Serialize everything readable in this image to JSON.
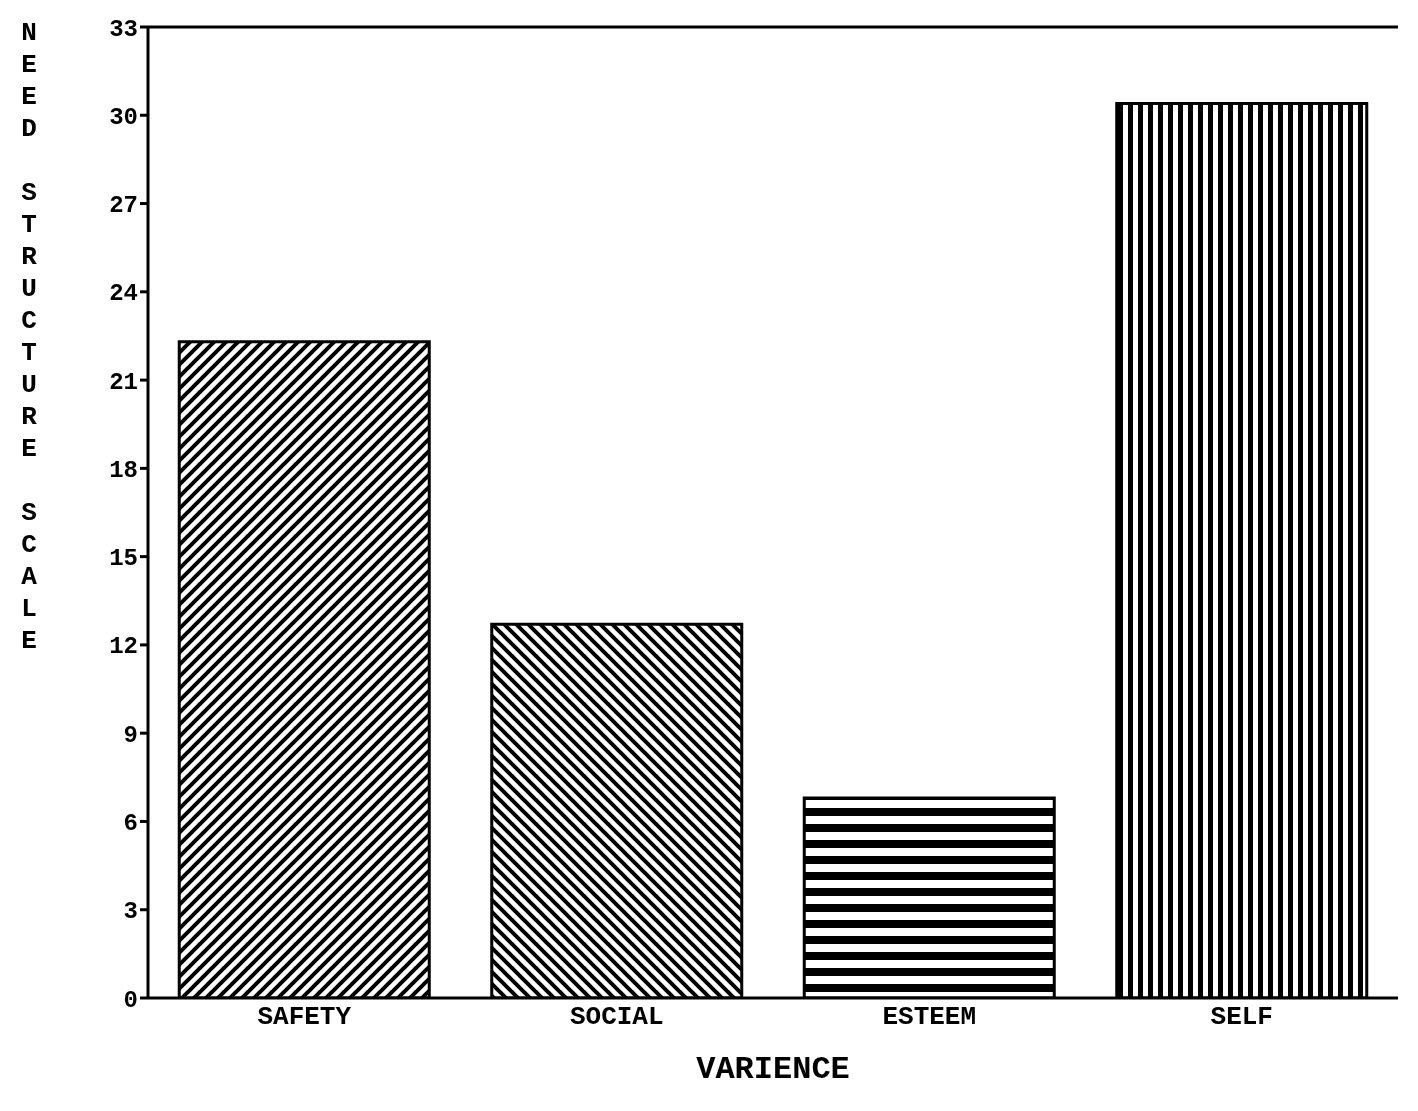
{
  "chart_data": {
    "type": "bar",
    "xlabel": "VARIENCE",
    "ylabel": "NEED STRUCTURE SCALE",
    "categories": [
      "SAFETY",
      "SOCIAL",
      "ESTEEM",
      "SELF"
    ],
    "values": [
      22.3,
      12.7,
      6.8,
      30.4
    ],
    "color": "#000000",
    "ylim": [
      0,
      33
    ],
    "yticks": [
      0,
      3,
      6,
      9,
      12,
      15,
      18,
      21,
      24,
      27,
      30,
      33
    ],
    "grid": false,
    "legend": false
  }
}
